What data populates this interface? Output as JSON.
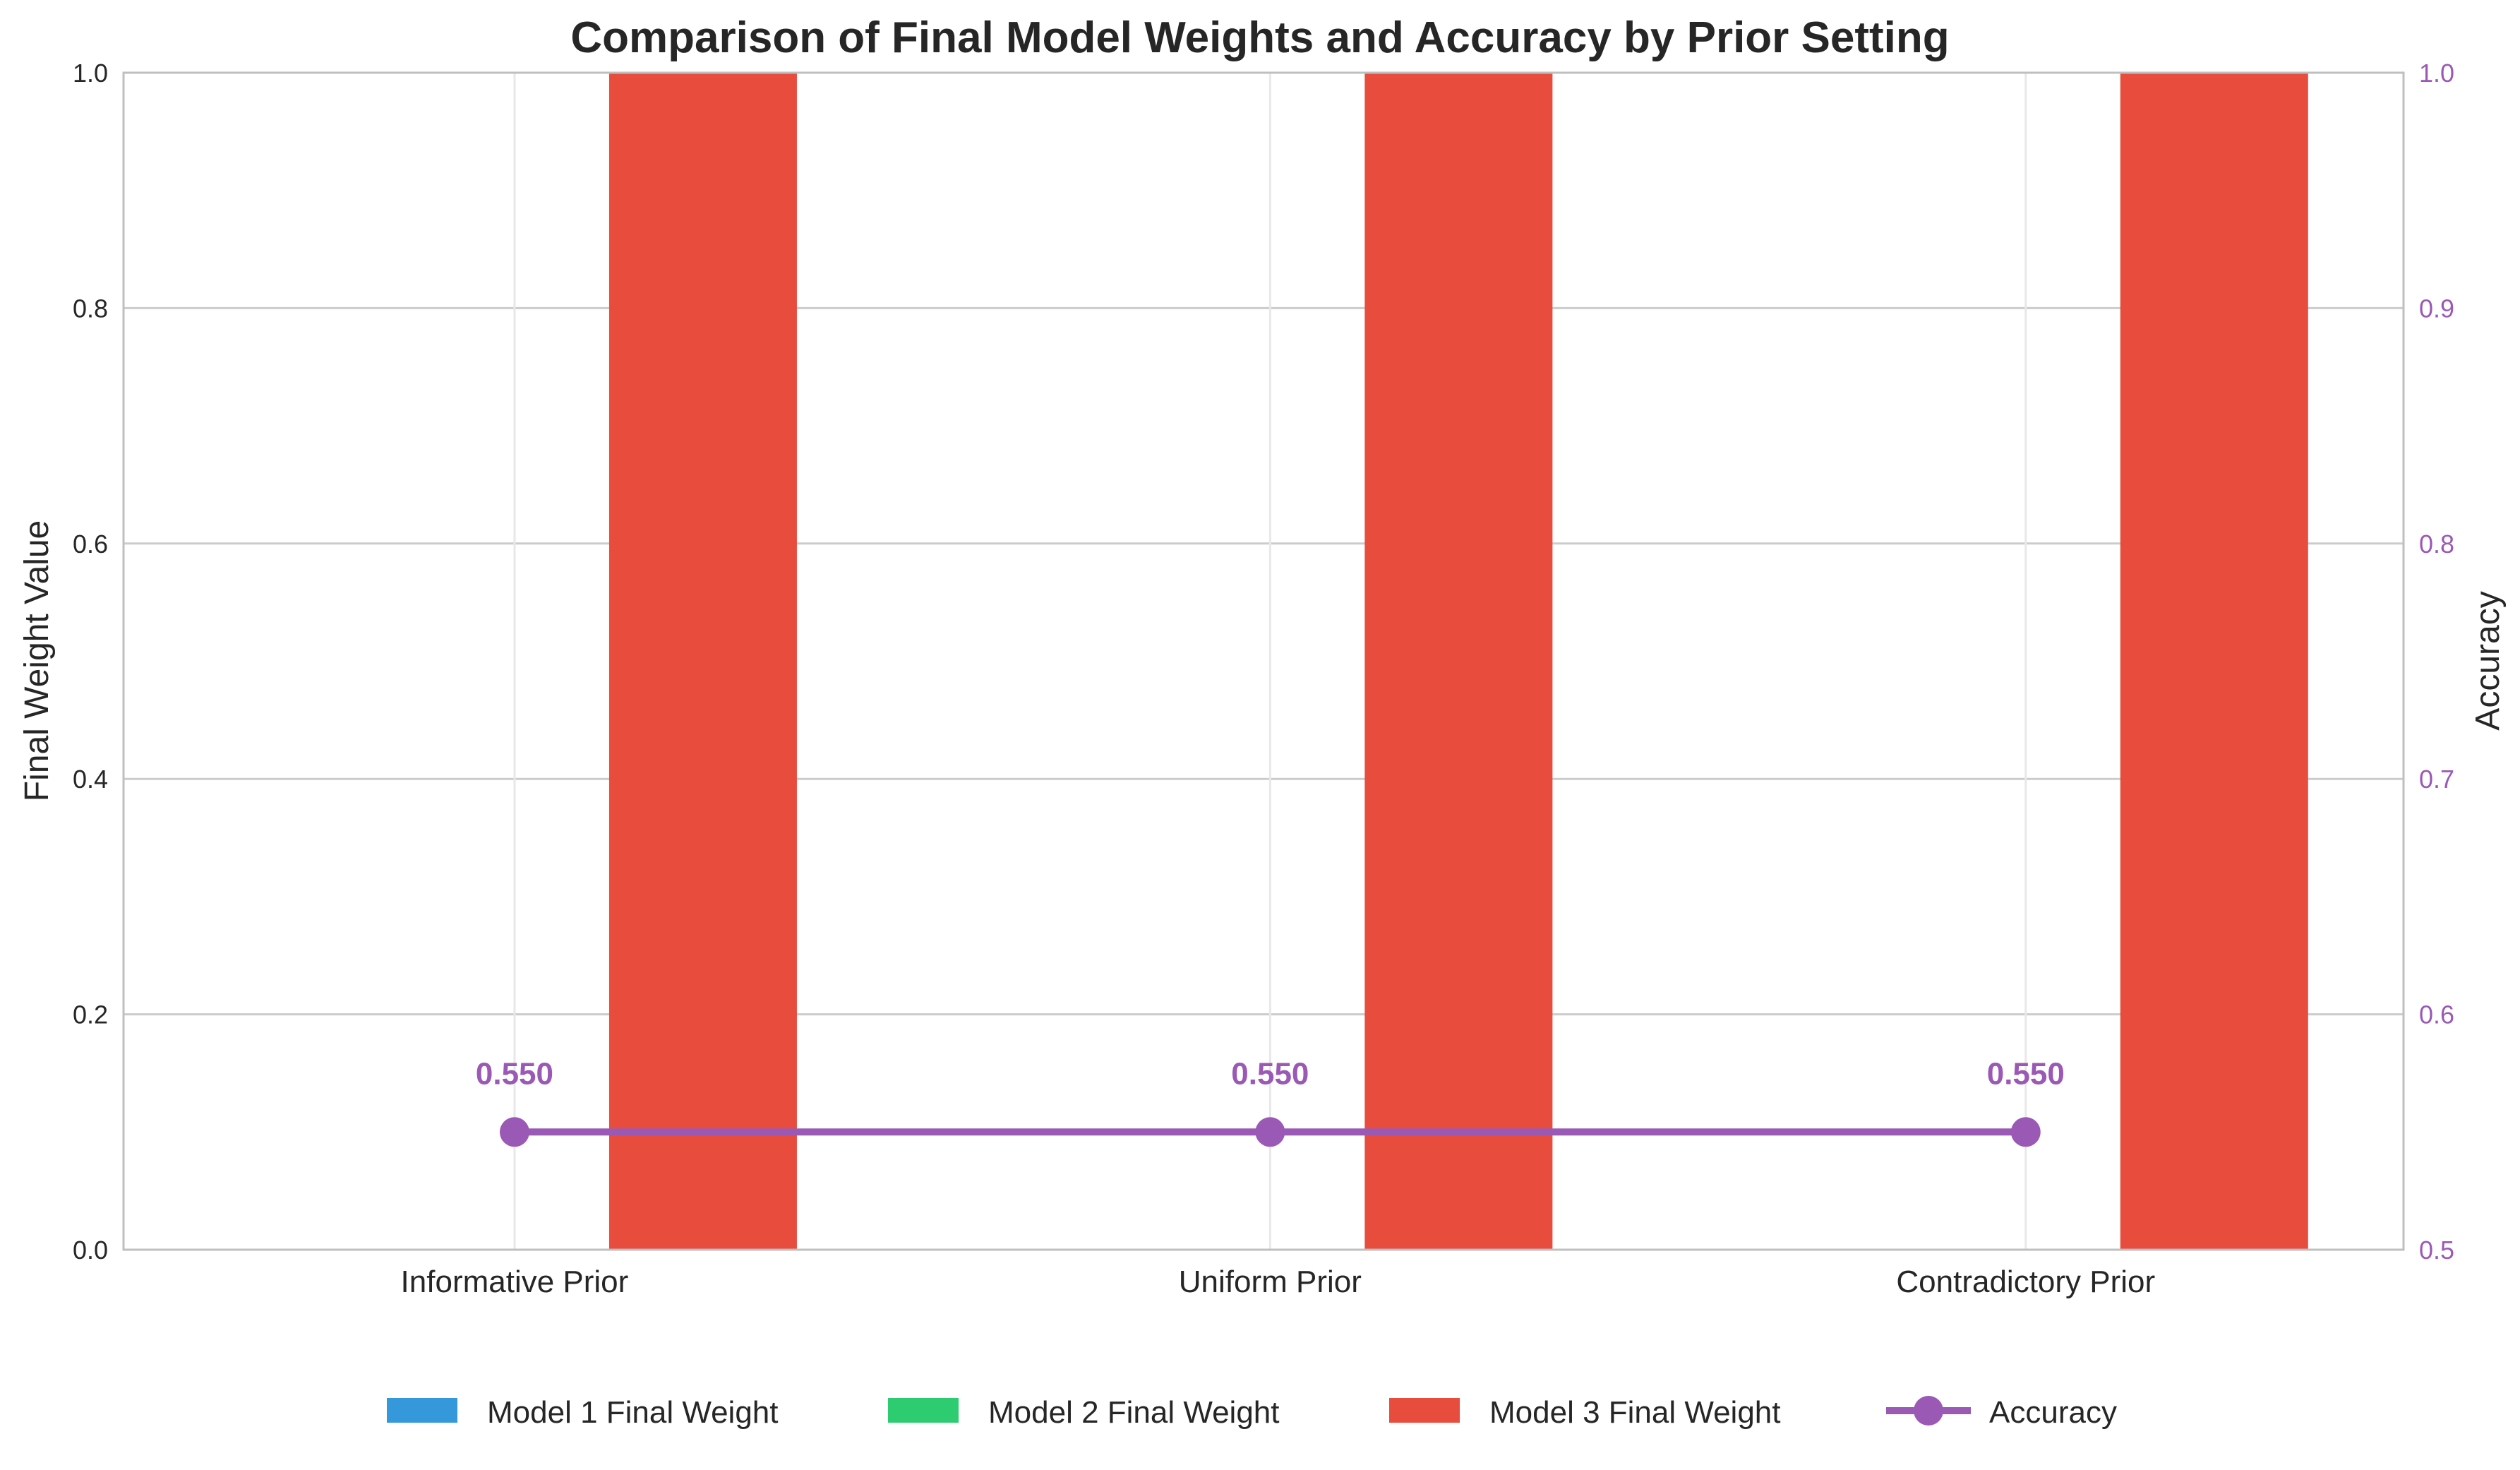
{
  "chart_data": {
    "type": "bar",
    "title": "Comparison of Final Model Weights and Accuracy by Prior Setting",
    "categories": [
      "Informative Prior",
      "Uniform Prior",
      "Contradictory Prior"
    ],
    "ylabel": "Final Weight Value",
    "ylabel_right": "Accuracy",
    "ylim": [
      0,
      1.0
    ],
    "ylim_right": [
      0.5,
      1.0
    ],
    "yticks": [
      "0.0",
      "0.2",
      "0.4",
      "0.6",
      "0.8",
      "1.0"
    ],
    "yticks_right": [
      "0.5",
      "0.6",
      "0.7",
      "0.8",
      "0.9",
      "1.0"
    ],
    "grid": true,
    "legend_placement": "bottom-center",
    "series": [
      {
        "name": "Model 1 Final Weight",
        "values": [
          0,
          0,
          0
        ],
        "color": "#3498db"
      },
      {
        "name": "Model 2 Final Weight",
        "values": [
          0,
          0,
          0
        ],
        "color": "#2ecc71"
      },
      {
        "name": "Model 3 Final Weight",
        "values": [
          1.0,
          1.0,
          1.0
        ],
        "color": "#e74c3c"
      }
    ],
    "line_series": {
      "name": "Accuracy",
      "values": [
        0.55,
        0.55,
        0.55
      ],
      "labels": [
        "0.550",
        "0.550",
        "0.550"
      ],
      "color": "#9b59b6",
      "axis": "right"
    }
  }
}
